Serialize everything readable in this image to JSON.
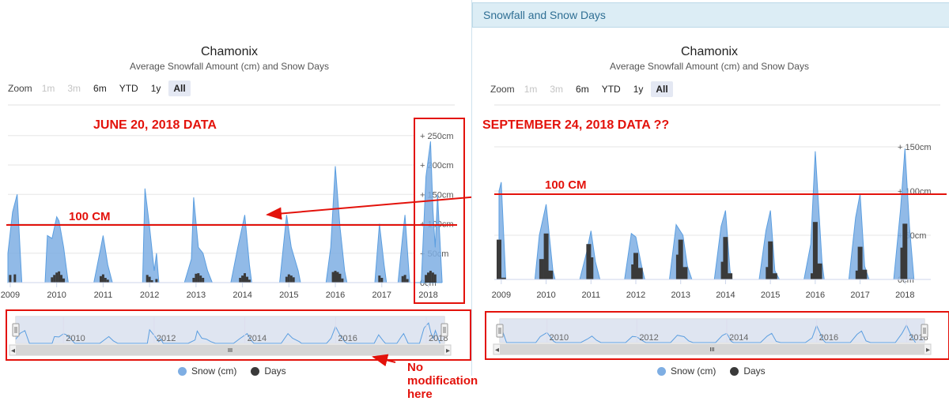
{
  "colors": {
    "snow": "#7eaee3",
    "snow_line": "#5b9ee0",
    "days": "#3a3a3a",
    "annotation": "#e3120b",
    "nav_fill": "#dde3f0"
  },
  "right_tab": {
    "label": "Snowfall and Snow Days"
  },
  "zoom": {
    "label": "Zoom",
    "buttons": [
      "1m",
      "3m",
      "6m",
      "YTD",
      "1y",
      "All"
    ],
    "disabled": [
      "1m",
      "3m"
    ],
    "selected": "All"
  },
  "legend": {
    "snow": "Snow (cm)",
    "days": "Days"
  },
  "annotations": {
    "left_heading": "JUNE 20, 2018 DATA",
    "right_heading": "SEPTEMBER 24, 2018 DATA ??",
    "left_line_label": "100 CM",
    "right_line_label": "100 CM",
    "nav_note": "No modification here"
  },
  "navigator": {
    "labels": [
      "2010",
      "2012",
      "2014",
      "2016",
      "2018"
    ]
  },
  "chart_data": [
    {
      "type": "area",
      "title": "Chamonix",
      "subtitle": "Average Snowfall Amount (cm) and Snow Days",
      "x_labels": [
        "2009",
        "2010",
        "2011",
        "2012",
        "2013",
        "2014",
        "2015",
        "2016",
        "2017",
        "2018"
      ],
      "x_range": [
        2008.95,
        2018.4
      ],
      "y_ticks": [
        "0cm",
        "+ 50cm",
        "+ 100cm",
        "+ 150cm",
        "+ 200cm",
        "+ 250cm"
      ],
      "ylim": [
        0,
        260
      ],
      "series": [
        {
          "name": "Snow (cm)",
          "type": "area",
          "points": [
            [
              2008.95,
              50
            ],
            [
              2009.05,
              120
            ],
            [
              2009.15,
              150
            ],
            [
              2009.25,
              0
            ],
            [
              2009.75,
              0
            ],
            [
              2009.8,
              80
            ],
            [
              2009.9,
              75
            ],
            [
              2010.0,
              112
            ],
            [
              2010.05,
              105
            ],
            [
              2010.15,
              60
            ],
            [
              2010.25,
              0
            ],
            [
              2010.8,
              0
            ],
            [
              2010.95,
              60
            ],
            [
              2011.0,
              80
            ],
            [
              2011.1,
              30
            ],
            [
              2011.2,
              0
            ],
            [
              2011.85,
              0
            ],
            [
              2011.9,
              160
            ],
            [
              2012.0,
              95
            ],
            [
              2012.1,
              20
            ],
            [
              2012.15,
              50
            ],
            [
              2012.2,
              0
            ],
            [
              2012.75,
              0
            ],
            [
              2012.9,
              40
            ],
            [
              2012.95,
              145
            ],
            [
              2013.05,
              60
            ],
            [
              2013.15,
              50
            ],
            [
              2013.25,
              20
            ],
            [
              2013.35,
              0
            ],
            [
              2013.75,
              0
            ],
            [
              2013.9,
              60
            ],
            [
              2014.05,
              115
            ],
            [
              2014.15,
              30
            ],
            [
              2014.2,
              0
            ],
            [
              2014.8,
              0
            ],
            [
              2014.95,
              115
            ],
            [
              2015.05,
              60
            ],
            [
              2015.2,
              20
            ],
            [
              2015.25,
              0
            ],
            [
              2015.8,
              0
            ],
            [
              2015.9,
              60
            ],
            [
              2016.0,
              198
            ],
            [
              2016.1,
              95
            ],
            [
              2016.2,
              20
            ],
            [
              2016.25,
              0
            ],
            [
              2016.85,
              0
            ],
            [
              2016.95,
              100
            ],
            [
              2017.05,
              30
            ],
            [
              2017.1,
              0
            ],
            [
              2017.35,
              0
            ],
            [
              2017.45,
              80
            ],
            [
              2017.5,
              115
            ],
            [
              2017.6,
              0
            ],
            [
              2017.85,
              0
            ],
            [
              2017.95,
              180
            ],
            [
              2018.05,
              240
            ],
            [
              2018.1,
              125
            ],
            [
              2018.15,
              60
            ],
            [
              2018.2,
              150
            ],
            [
              2018.3,
              0
            ]
          ]
        },
        {
          "name": "Days",
          "type": "column",
          "points": [
            [
              2009.0,
              13
            ],
            [
              2009.1,
              14
            ],
            [
              2009.9,
              9
            ],
            [
              2009.95,
              13
            ],
            [
              2010.0,
              17
            ],
            [
              2010.05,
              19
            ],
            [
              2010.1,
              13
            ],
            [
              2010.15,
              7
            ],
            [
              2010.95,
              11
            ],
            [
              2011.0,
              14
            ],
            [
              2011.05,
              8
            ],
            [
              2011.1,
              5
            ],
            [
              2011.95,
              13
            ],
            [
              2012.0,
              10
            ],
            [
              2012.05,
              4
            ],
            [
              2012.15,
              6
            ],
            [
              2012.95,
              8
            ],
            [
              2013.0,
              15
            ],
            [
              2013.05,
              16
            ],
            [
              2013.1,
              12
            ],
            [
              2013.15,
              8
            ],
            [
              2013.95,
              8
            ],
            [
              2014.0,
              12
            ],
            [
              2014.05,
              16
            ],
            [
              2014.1,
              10
            ],
            [
              2014.15,
              5
            ],
            [
              2014.95,
              10
            ],
            [
              2015.0,
              14
            ],
            [
              2015.05,
              12
            ],
            [
              2015.1,
              9
            ],
            [
              2015.95,
              18
            ],
            [
              2016.0,
              20
            ],
            [
              2016.05,
              18
            ],
            [
              2016.1,
              15
            ],
            [
              2016.15,
              7
            ],
            [
              2016.95,
              12
            ],
            [
              2017.0,
              8
            ],
            [
              2017.45,
              11
            ],
            [
              2017.5,
              13
            ],
            [
              2017.55,
              6
            ],
            [
              2017.95,
              13
            ],
            [
              2018.0,
              17
            ],
            [
              2018.05,
              20
            ],
            [
              2018.1,
              17
            ],
            [
              2018.15,
              14
            ]
          ]
        }
      ]
    },
    {
      "type": "area",
      "title": "Chamonix",
      "subtitle": "Average Snowfall Amount (cm) and Snow Days",
      "x_labels": [
        "2009",
        "2010",
        "2011",
        "2012",
        "2013",
        "2014",
        "2015",
        "2016",
        "2017",
        "2018"
      ],
      "x_range": [
        2008.95,
        2018.4
      ],
      "y_ticks": [
        "0cm",
        "+ 50cm",
        "+ 100cm",
        "+ 150cm"
      ],
      "ylim": [
        0,
        160
      ],
      "series": [
        {
          "name": "Snow (cm)",
          "type": "area",
          "points": [
            [
              2008.95,
              100
            ],
            [
              2009.0,
              110
            ],
            [
              2009.1,
              0
            ],
            [
              2009.75,
              0
            ],
            [
              2009.85,
              50
            ],
            [
              2010.0,
              85
            ],
            [
              2010.15,
              10
            ],
            [
              2010.2,
              0
            ],
            [
              2010.75,
              0
            ],
            [
              2010.9,
              30
            ],
            [
              2011.0,
              55
            ],
            [
              2011.1,
              20
            ],
            [
              2011.2,
              0
            ],
            [
              2011.75,
              0
            ],
            [
              2011.9,
              52
            ],
            [
              2012.0,
              48
            ],
            [
              2012.15,
              10
            ],
            [
              2012.2,
              0
            ],
            [
              2012.75,
              0
            ],
            [
              2012.9,
              62
            ],
            [
              2013.05,
              50
            ],
            [
              2013.15,
              15
            ],
            [
              2013.25,
              0
            ],
            [
              2013.75,
              0
            ],
            [
              2013.9,
              60
            ],
            [
              2014.0,
              78
            ],
            [
              2014.1,
              10
            ],
            [
              2014.15,
              0
            ],
            [
              2014.75,
              0
            ],
            [
              2014.9,
              55
            ],
            [
              2015.0,
              78
            ],
            [
              2015.1,
              10
            ],
            [
              2015.2,
              0
            ],
            [
              2015.75,
              0
            ],
            [
              2015.9,
              40
            ],
            [
              2016.0,
              145
            ],
            [
              2016.15,
              20
            ],
            [
              2016.2,
              0
            ],
            [
              2016.75,
              0
            ],
            [
              2016.9,
              70
            ],
            [
              2017.0,
              97
            ],
            [
              2017.1,
              15
            ],
            [
              2017.2,
              0
            ],
            [
              2017.75,
              0
            ],
            [
              2017.9,
              78
            ],
            [
              2018.0,
              148
            ],
            [
              2018.1,
              60
            ],
            [
              2018.2,
              0
            ]
          ]
        },
        {
          "name": "Days",
          "type": "column",
          "points": [
            [
              2008.95,
              45
            ],
            [
              2009.05,
              2
            ],
            [
              2009.9,
              23
            ],
            [
              2010.0,
              52
            ],
            [
              2010.1,
              10
            ],
            [
              2010.95,
              40
            ],
            [
              2011.0,
              25
            ],
            [
              2011.95,
              17
            ],
            [
              2012.0,
              30
            ],
            [
              2012.1,
              13
            ],
            [
              2012.95,
              28
            ],
            [
              2013.0,
              45
            ],
            [
              2013.1,
              14
            ],
            [
              2013.95,
              20
            ],
            [
              2014.0,
              48
            ],
            [
              2014.1,
              7
            ],
            [
              2014.95,
              14
            ],
            [
              2015.0,
              43
            ],
            [
              2015.1,
              7
            ],
            [
              2015.95,
              7
            ],
            [
              2016.0,
              65
            ],
            [
              2016.1,
              18
            ],
            [
              2016.95,
              10
            ],
            [
              2017.0,
              37
            ],
            [
              2017.1,
              11
            ],
            [
              2017.95,
              36
            ],
            [
              2018.0,
              63
            ]
          ]
        }
      ]
    }
  ]
}
